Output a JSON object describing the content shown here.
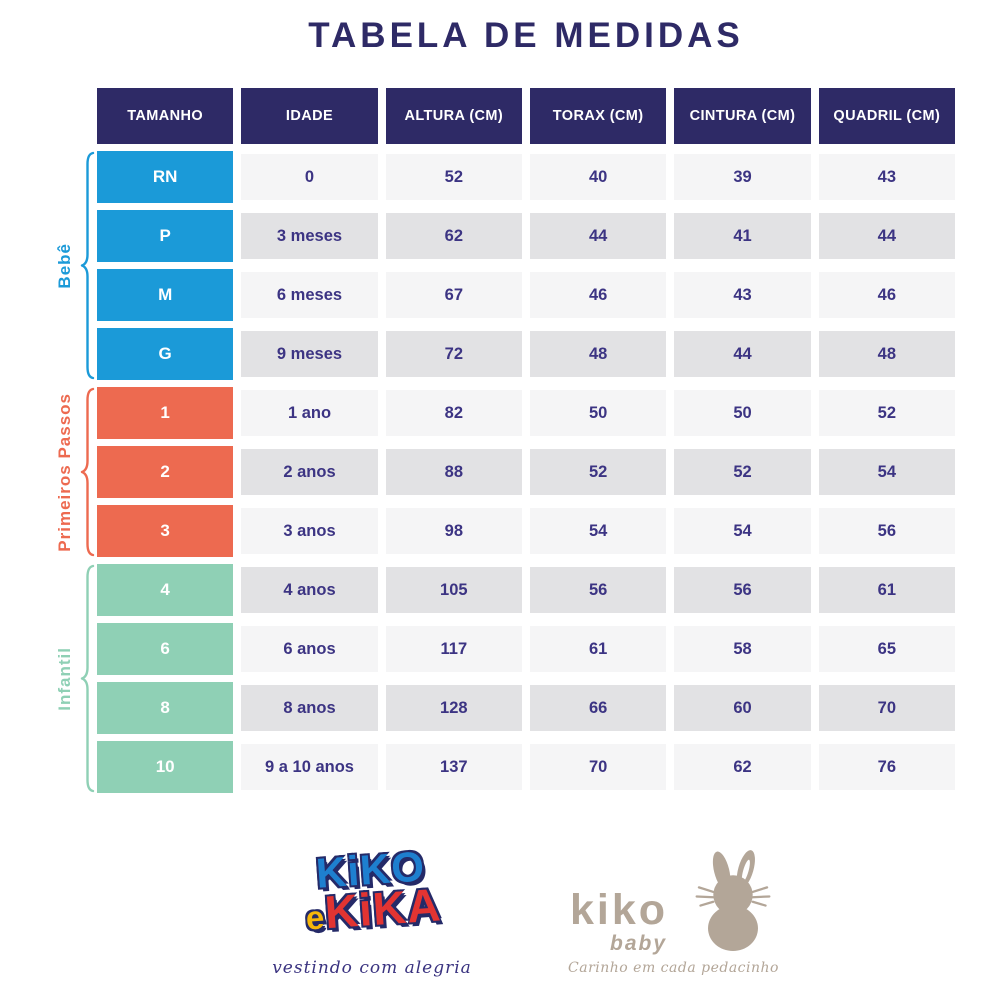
{
  "title": "TABELA DE MEDIDAS",
  "colors": {
    "header_navy": "#2e2a66",
    "text_navy": "#3c3483",
    "row_light": "#f5f5f6",
    "row_dark": "#e2e2e4",
    "bebe_blue": "#1b9ad8",
    "primeiros_coral": "#ed6a50",
    "infantil_mint": "#8fd0b5",
    "brand_beige": "#b3a698"
  },
  "table": {
    "headers": [
      "TAMANHO",
      "IDADE",
      "ALTURA (CM)",
      "TORAX (CM)",
      "CINTURA (CM)",
      "QUADRIL (CM)"
    ],
    "groups": [
      {
        "label": "Bebê",
        "color": "#1b9ad8",
        "rows": [
          {
            "size": "RN",
            "idade": "0",
            "altura": "52",
            "torax": "40",
            "cintura": "39",
            "quadril": "43"
          },
          {
            "size": "P",
            "idade": "3 meses",
            "altura": "62",
            "torax": "44",
            "cintura": "41",
            "quadril": "44"
          },
          {
            "size": "M",
            "idade": "6 meses",
            "altura": "67",
            "torax": "46",
            "cintura": "43",
            "quadril": "46"
          },
          {
            "size": "G",
            "idade": "9 meses",
            "altura": "72",
            "torax": "48",
            "cintura": "44",
            "quadril": "48"
          }
        ]
      },
      {
        "label": "Primeiros Passos",
        "color": "#ed6a50",
        "rows": [
          {
            "size": "1",
            "idade": "1 ano",
            "altura": "82",
            "torax": "50",
            "cintura": "50",
            "quadril": "52"
          },
          {
            "size": "2",
            "idade": "2 anos",
            "altura": "88",
            "torax": "52",
            "cintura": "52",
            "quadril": "54"
          },
          {
            "size": "3",
            "idade": "3 anos",
            "altura": "98",
            "torax": "54",
            "cintura": "54",
            "quadril": "56"
          }
        ]
      },
      {
        "label": "Infantil",
        "color": "#8fd0b5",
        "rows": [
          {
            "size": "4",
            "idade": "4 anos",
            "altura": "105",
            "torax": "56",
            "cintura": "56",
            "quadril": "61"
          },
          {
            "size": "6",
            "idade": "6 anos",
            "altura": "117",
            "torax": "61",
            "cintura": "58",
            "quadril": "65"
          },
          {
            "size": "8",
            "idade": "8 anos",
            "altura": "128",
            "torax": "66",
            "cintura": "60",
            "quadril": "70"
          },
          {
            "size": "10",
            "idade": "9 a 10 anos",
            "altura": "137",
            "torax": "70",
            "cintura": "62",
            "quadril": "76"
          }
        ]
      }
    ]
  },
  "chart_data": {
    "type": "table",
    "title": "TABELA DE MEDIDAS",
    "columns": [
      "TAMANHO",
      "IDADE",
      "ALTURA (CM)",
      "TORAX (CM)",
      "CINTURA (CM)",
      "QUADRIL (CM)"
    ],
    "row_groups": [
      "Bebê",
      "Bebê",
      "Bebê",
      "Bebê",
      "Primeiros Passos",
      "Primeiros Passos",
      "Primeiros Passos",
      "Infantil",
      "Infantil",
      "Infantil",
      "Infantil"
    ],
    "rows": [
      [
        "RN",
        "0",
        52,
        40,
        39,
        43
      ],
      [
        "P",
        "3 meses",
        62,
        44,
        41,
        44
      ],
      [
        "M",
        "6 meses",
        67,
        46,
        43,
        46
      ],
      [
        "G",
        "9 meses",
        72,
        48,
        44,
        48
      ],
      [
        "1",
        "1 ano",
        82,
        50,
        50,
        52
      ],
      [
        "2",
        "2 anos",
        88,
        52,
        52,
        54
      ],
      [
        "3",
        "3 anos",
        98,
        54,
        54,
        56
      ],
      [
        "4",
        "4 anos",
        105,
        56,
        56,
        61
      ],
      [
        "6",
        "6 anos",
        117,
        61,
        58,
        65
      ],
      [
        "8",
        "8 anos",
        128,
        66,
        60,
        70
      ],
      [
        "10",
        "9 a 10 anos",
        137,
        70,
        62,
        76
      ]
    ]
  },
  "footer": {
    "brand_left": {
      "word1": "KiKO",
      "word2_e": "e",
      "word2": "KiKA",
      "tagline": "vestindo com alegria"
    },
    "brand_right": {
      "name": "kiko",
      "sub": "baby",
      "tagline": "Carinho em cada pedacinho"
    }
  }
}
